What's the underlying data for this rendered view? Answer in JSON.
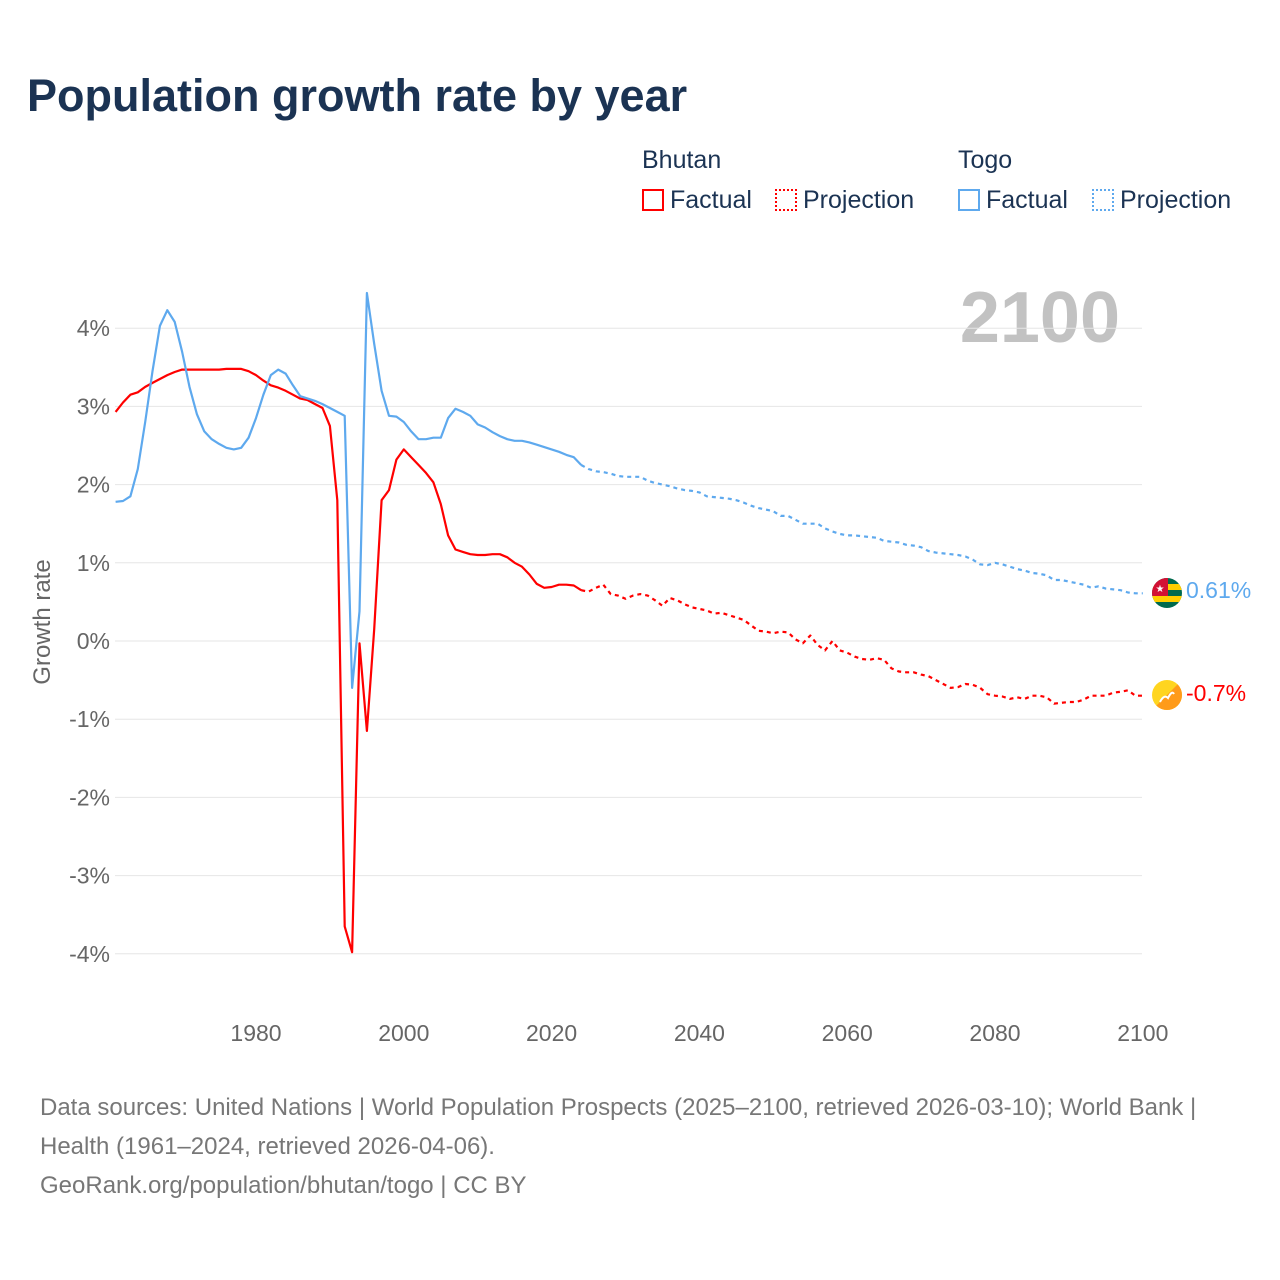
{
  "title": "Population growth rate by year",
  "legend": {
    "groups": [
      {
        "name": "Bhutan",
        "factual": "Factual",
        "projection": "Projection",
        "color": "#ff0000"
      },
      {
        "name": "Togo",
        "factual": "Factual",
        "projection": "Projection",
        "color": "#5ea9ee"
      }
    ]
  },
  "year_label": "2100",
  "end_labels": {
    "togo": "0.61%",
    "bhutan": "-0.7%"
  },
  "sources": {
    "line1": "Data sources: United Nations | World Population Prospects (2025–2100, retrieved 2026-03-10); World Bank | Health (1961–2024, retrieved 2026-04-06).",
    "line2": "GeoRank.org/population/bhutan/togo | CC BY"
  },
  "chart_data": {
    "type": "line",
    "title": "Population growth rate by year",
    "xlabel": "",
    "ylabel": "Growth rate",
    "xlim": [
      1961,
      2100
    ],
    "ylim": [
      -4.6,
      4.7
    ],
    "xticks": [
      1980,
      2000,
      2020,
      2040,
      2060,
      2080,
      2100
    ],
    "yticks": [
      {
        "v": 4,
        "l": "4%"
      },
      {
        "v": 3,
        "l": "3%"
      },
      {
        "v": 2,
        "l": "2%"
      },
      {
        "v": 1,
        "l": "1%"
      },
      {
        "v": 0,
        "l": "0%"
      },
      {
        "v": -1,
        "l": "-1%"
      },
      {
        "v": -2,
        "l": "-2%"
      },
      {
        "v": -3,
        "l": "-3%"
      },
      {
        "v": -4,
        "l": "-4%"
      }
    ],
    "grid": true,
    "legend_placement": "top-right",
    "series": [
      {
        "name": "Bhutan Factual",
        "color": "#ff0000",
        "dashed": false,
        "start": 1961,
        "values": [
          2.93,
          3.05,
          3.15,
          3.18,
          3.25,
          3.3,
          3.35,
          3.4,
          3.44,
          3.47,
          3.47,
          3.47,
          3.47,
          3.47,
          3.47,
          3.48,
          3.48,
          3.48,
          3.45,
          3.4,
          3.33,
          3.27,
          3.24,
          3.2,
          3.15,
          3.1,
          3.08,
          3.03,
          2.98,
          2.75,
          1.8,
          -3.65,
          -3.98,
          -0.03,
          -1.15,
          0.15,
          1.8,
          1.93,
          2.32,
          2.45,
          2.35,
          2.25,
          2.15,
          2.03,
          1.75,
          1.35,
          1.17,
          1.14,
          1.11,
          1.1,
          1.1,
          1.11,
          1.11,
          1.07,
          1.0,
          0.95,
          0.85,
          0.73,
          0.68,
          0.69,
          0.72,
          0.72,
          0.71,
          0.65
        ]
      },
      {
        "name": "Bhutan Projection",
        "color": "#ff0000",
        "dashed": true,
        "start": 2024,
        "values": [
          0.65,
          0.63,
          0.68,
          0.72,
          0.6,
          0.58,
          0.54,
          0.58,
          0.6,
          0.58,
          0.52,
          0.45,
          0.55,
          0.52,
          0.47,
          0.43,
          0.41,
          0.39,
          0.35,
          0.36,
          0.33,
          0.3,
          0.27,
          0.2,
          0.13,
          0.12,
          0.1,
          0.12,
          0.11,
          0.02,
          -0.03,
          0.07,
          -0.05,
          -0.12,
          0.0,
          -0.12,
          -0.15,
          -0.2,
          -0.23,
          -0.24,
          -0.22,
          -0.24,
          -0.35,
          -0.39,
          -0.4,
          -0.4,
          -0.43,
          -0.45,
          -0.5,
          -0.55,
          -0.6,
          -0.59,
          -0.55,
          -0.56,
          -0.6,
          -0.68,
          -0.7,
          -0.71,
          -0.74,
          -0.72,
          -0.74,
          -0.7,
          -0.7,
          -0.72,
          -0.8,
          -0.79,
          -0.78,
          -0.78,
          -0.75,
          -0.7,
          -0.7,
          -0.7,
          -0.66,
          -0.65,
          -0.63,
          -0.7,
          -0.7
        ]
      },
      {
        "name": "Togo Factual",
        "color": "#5ea9ee",
        "dashed": false,
        "start": 1961,
        "values": [
          1.78,
          1.79,
          1.85,
          2.2,
          2.8,
          3.45,
          4.03,
          4.23,
          4.08,
          3.7,
          3.25,
          2.9,
          2.68,
          2.58,
          2.52,
          2.47,
          2.45,
          2.47,
          2.6,
          2.85,
          3.15,
          3.4,
          3.47,
          3.42,
          3.27,
          3.13,
          3.1,
          3.07,
          3.03,
          2.98,
          2.93,
          2.88,
          -0.6,
          0.38,
          4.45,
          3.8,
          3.2,
          2.88,
          2.87,
          2.8,
          2.68,
          2.58,
          2.58,
          2.6,
          2.6,
          2.85,
          2.97,
          2.93,
          2.88,
          2.77,
          2.73,
          2.67,
          2.62,
          2.58,
          2.56,
          2.56,
          2.54,
          2.51,
          2.48,
          2.45,
          2.42,
          2.38,
          2.35,
          2.25
        ]
      },
      {
        "name": "Togo Projection",
        "color": "#5ea9ee",
        "dashed": true,
        "start": 2024,
        "values": [
          2.25,
          2.2,
          2.17,
          2.16,
          2.14,
          2.11,
          2.1,
          2.1,
          2.1,
          2.05,
          2.02,
          2.0,
          1.98,
          1.95,
          1.93,
          1.92,
          1.9,
          1.85,
          1.84,
          1.83,
          1.82,
          1.8,
          1.77,
          1.73,
          1.7,
          1.68,
          1.66,
          1.6,
          1.6,
          1.55,
          1.5,
          1.5,
          1.5,
          1.44,
          1.4,
          1.37,
          1.35,
          1.35,
          1.34,
          1.33,
          1.32,
          1.28,
          1.27,
          1.26,
          1.23,
          1.22,
          1.2,
          1.15,
          1.13,
          1.12,
          1.11,
          1.1,
          1.08,
          1.04,
          0.98,
          0.97,
          1.0,
          0.98,
          0.95,
          0.92,
          0.9,
          0.87,
          0.86,
          0.84,
          0.78,
          0.78,
          0.76,
          0.74,
          0.72,
          0.68,
          0.7,
          0.67,
          0.66,
          0.65,
          0.62,
          0.61,
          0.61
        ]
      }
    ]
  }
}
